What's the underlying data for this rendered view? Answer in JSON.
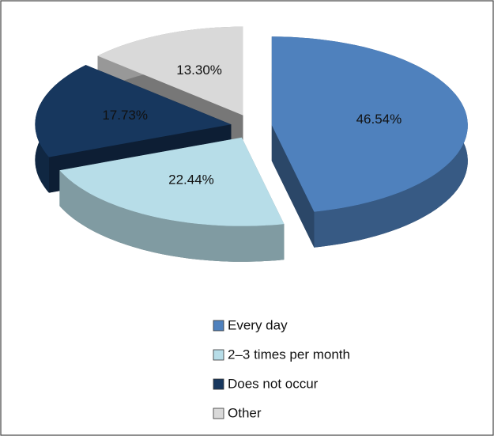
{
  "chart_data": {
    "type": "pie",
    "categories": [
      "Every day",
      "2–3 times per month",
      "Does not occur",
      "Other"
    ],
    "values": [
      46.54,
      22.44,
      17.73,
      13.3
    ],
    "value_labels": [
      "46.54%",
      "22.44%",
      "17.73%",
      "13.30%"
    ],
    "colors": [
      "#4f81bd",
      "#b7dde8",
      "#17375e",
      "#d9d9d9"
    ],
    "legend": "bottom"
  }
}
